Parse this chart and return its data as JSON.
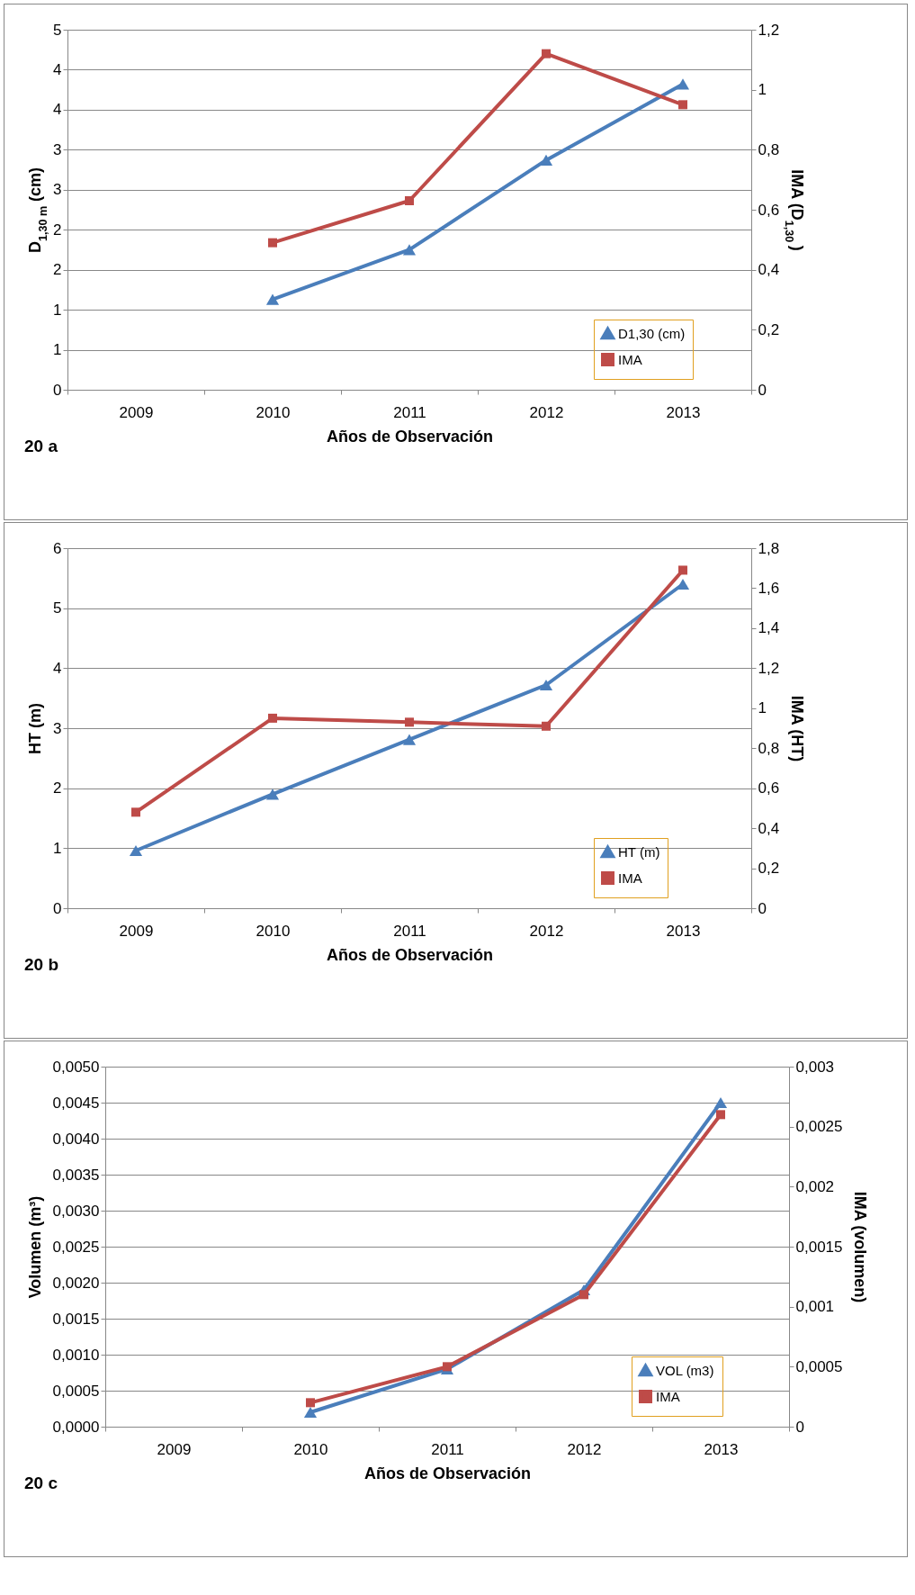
{
  "chart_data": [
    {
      "type": "line",
      "xlabel": "Años de Observación",
      "ylabel": "D$_{1,30 m}$ (cm)",
      "y2label": "IMA (D$_{1,30 }$)",
      "annotations": [
        "20 a"
      ],
      "categories": [
        "2009",
        "2010",
        "2011",
        "2012",
        "2013"
      ],
      "series": [
        {
          "name": "D1,30 (cm)",
          "color": "#4a7ebb",
          "marker": "triangle",
          "values": [
            null,
            1.13,
            1.75,
            2.87,
            3.82
          ]
        },
        {
          "name": "IMA",
          "color": "#be4b48",
          "marker": "square",
          "axis": "y2",
          "values": [
            null,
            0.49,
            0.63,
            1.12,
            0.95
          ]
        }
      ],
      "ylim": [
        0,
        4.5
      ],
      "yticks": [
        {
          "value": 0,
          "label": "0"
        },
        {
          "value": 0.5,
          "label": "1"
        },
        {
          "value": 1,
          "label": "1"
        },
        {
          "value": 1.5,
          "label": "2"
        },
        {
          "value": 2,
          "label": "2"
        },
        {
          "value": 2.5,
          "label": "3"
        },
        {
          "value": 3,
          "label": "3"
        },
        {
          "value": 3.5,
          "label": "4"
        },
        {
          "value": 4,
          "label": "4"
        },
        {
          "value": 4.5,
          "label": "5"
        }
      ],
      "y2lim": [
        0,
        1.2
      ],
      "y2ticks": [
        {
          "value": 0,
          "label": "0"
        },
        {
          "value": 0.2,
          "label": "0,2"
        },
        {
          "value": 0.4,
          "label": "0,4"
        },
        {
          "value": 0.6,
          "label": "0,6"
        },
        {
          "value": 0.8,
          "label": "0,8"
        },
        {
          "value": 1,
          "label": "1"
        },
        {
          "value": 1.2,
          "label": "1,2"
        }
      ],
      "grid": "y",
      "legend": "bottom right",
      "line_style": "solid"
    },
    {
      "type": "line",
      "xlabel": "Años de Observación",
      "ylabel": "HT (m)",
      "y2label": "IMA (HT)",
      "annotations": [
        "20 b"
      ],
      "categories": [
        "2009",
        "2010",
        "2011",
        "2012",
        "2013"
      ],
      "series": [
        {
          "name": "HT (m)",
          "color": "#4a7ebb",
          "marker": "triangle",
          "values": [
            0.96,
            1.9,
            2.81,
            3.72,
            5.4
          ]
        },
        {
          "name": "IMA",
          "color": "#be4b48",
          "marker": "square",
          "axis": "y2",
          "values": [
            0.48,
            0.95,
            0.93,
            0.91,
            1.69
          ]
        }
      ],
      "ylim": [
        0,
        6
      ],
      "yticks": [
        0,
        1,
        2,
        3,
        4,
        5,
        6
      ],
      "y2lim": [
        0,
        1.8
      ],
      "y2ticks": [
        {
          "value": 0,
          "label": "0"
        },
        {
          "value": 0.2,
          "label": "0,2"
        },
        {
          "value": 0.4,
          "label": "0,4"
        },
        {
          "value": 0.6,
          "label": "0,6"
        },
        {
          "value": 0.8,
          "label": "0,8"
        },
        {
          "value": 1,
          "label": "1"
        },
        {
          "value": 1.2,
          "label": "1,2"
        },
        {
          "value": 1.4,
          "label": "1,4"
        },
        {
          "value": 1.6,
          "label": "1,6"
        },
        {
          "value": 1.8,
          "label": "1,8"
        }
      ],
      "grid": "y",
      "legend": "bottom right",
      "line_style": "solid"
    },
    {
      "type": "line",
      "xlabel": "Años de Observación",
      "ylabel": "Volumen (m³)",
      "y2label": "IMA (volumen)",
      "annotations": [
        "20 c"
      ],
      "categories": [
        "2009",
        "2010",
        "2011",
        "2012",
        "2013"
      ],
      "series": [
        {
          "name": "VOL (m3)",
          "color": "#4a7ebb",
          "marker": "triangle",
          "values": [
            null,
            0.0002,
            0.0008,
            0.0019,
            0.0045
          ]
        },
        {
          "name": "IMA",
          "color": "#be4b48",
          "marker": "square",
          "axis": "y2",
          "values": [
            null,
            0.0002,
            0.0005,
            0.0011,
            0.0026
          ]
        }
      ],
      "ylim": [
        0,
        0.005
      ],
      "yticks": [
        {
          "value": 0,
          "label": "0,0000"
        },
        {
          "value": 0.0005,
          "label": "0,0005"
        },
        {
          "value": 0.001,
          "label": "0,0010"
        },
        {
          "value": 0.0015,
          "label": "0,0015"
        },
        {
          "value": 0.002,
          "label": "0,0020"
        },
        {
          "value": 0.0025,
          "label": "0,0025"
        },
        {
          "value": 0.003,
          "label": "0,0030"
        },
        {
          "value": 0.0035,
          "label": "0,0035"
        },
        {
          "value": 0.004,
          "label": "0,0040"
        },
        {
          "value": 0.0045,
          "label": "0,0045"
        },
        {
          "value": 0.005,
          "label": "0,0050"
        }
      ],
      "y2lim": [
        0,
        0.003
      ],
      "y2ticks": [
        {
          "value": 0,
          "label": "0"
        },
        {
          "value": 0.0005,
          "label": "0,0005"
        },
        {
          "value": 0.001,
          "label": "0,001"
        },
        {
          "value": 0.0015,
          "label": "0,0015"
        },
        {
          "value": 0.002,
          "label": "0,002"
        },
        {
          "value": 0.0025,
          "label": "0,0025"
        },
        {
          "value": 0.003,
          "label": "0,003"
        }
      ],
      "grid": "y",
      "legend": "bottom right",
      "line_style": "solid"
    }
  ]
}
